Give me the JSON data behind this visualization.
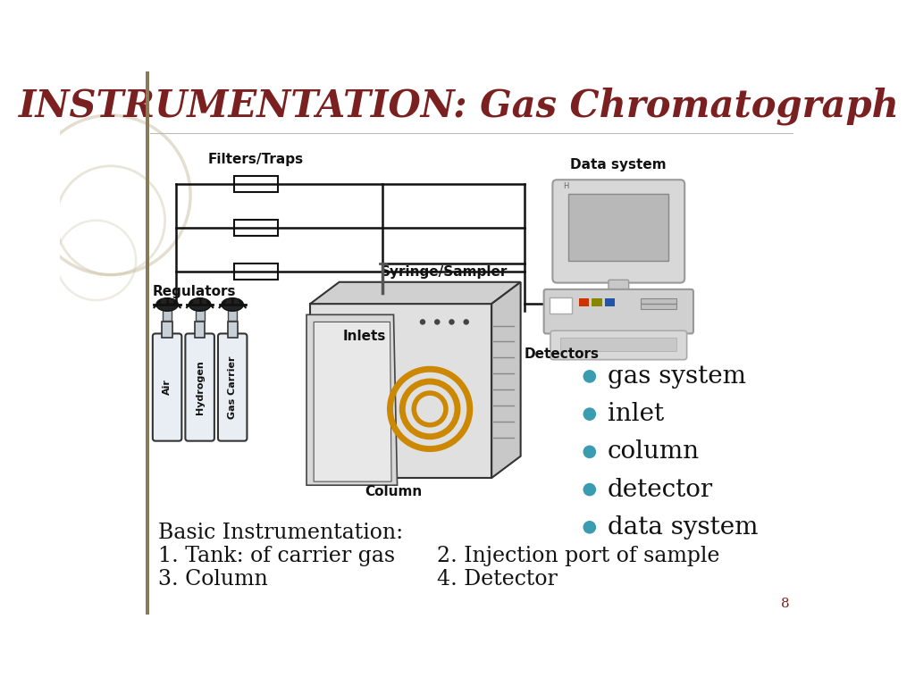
{
  "title": "INSTRUMENTATION: Gas Chromatograph",
  "title_color": "#7B2020",
  "bg_color": "#FFFFFF",
  "bullet_items": [
    "gas system",
    "inlet",
    "column",
    "detector",
    "data system"
  ],
  "bullet_color": "#3A9CB0",
  "bullet_text_color": "#111111",
  "bottom_text_line1": "Basic Instrumentation:",
  "bottom_text_line2": "1. Tank: of carrier gas",
  "bottom_text_line3": "3. Column",
  "bottom_text_right1": "2. Injection port of sample",
  "bottom_text_right2": "4. Detector",
  "page_number": "8",
  "label_filters": "Filters/Traps",
  "label_regulators": "Regulators",
  "label_syringe": "Syringe/Sampler",
  "label_inlets": "Inlets",
  "label_detectors": "Detectors",
  "label_column": "Column",
  "label_datasystem": "Data system",
  "gas_labels": [
    "Air",
    "Hydrogen",
    "Gas Carrier"
  ],
  "deco_circle_color": "#C8BFA0",
  "pipe_color": "#111111",
  "pipe_lw": 1.8
}
